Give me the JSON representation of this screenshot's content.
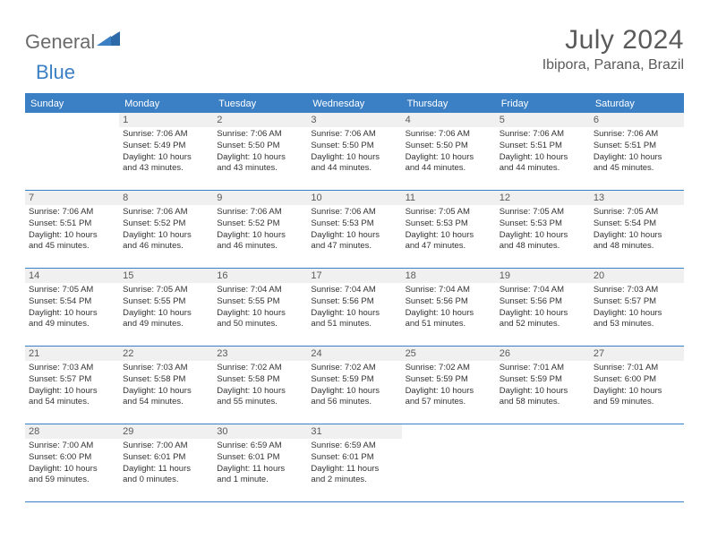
{
  "logo": {
    "part1": "General",
    "part2": "Blue"
  },
  "title": "July 2024",
  "location": "Ibipora, Parana, Brazil",
  "header_color": "#3b7fc4",
  "daynum_bg": "#f0f0f0",
  "text_color": "#333333",
  "weekdays": [
    "Sunday",
    "Monday",
    "Tuesday",
    "Wednesday",
    "Thursday",
    "Friday",
    "Saturday"
  ],
  "weeks": [
    [
      {
        "n": "",
        "sr": "",
        "ss": "",
        "d1": "",
        "d2": ""
      },
      {
        "n": "1",
        "sr": "Sunrise: 7:06 AM",
        "ss": "Sunset: 5:49 PM",
        "d1": "Daylight: 10 hours",
        "d2": "and 43 minutes."
      },
      {
        "n": "2",
        "sr": "Sunrise: 7:06 AM",
        "ss": "Sunset: 5:50 PM",
        "d1": "Daylight: 10 hours",
        "d2": "and 43 minutes."
      },
      {
        "n": "3",
        "sr": "Sunrise: 7:06 AM",
        "ss": "Sunset: 5:50 PM",
        "d1": "Daylight: 10 hours",
        "d2": "and 44 minutes."
      },
      {
        "n": "4",
        "sr": "Sunrise: 7:06 AM",
        "ss": "Sunset: 5:50 PM",
        "d1": "Daylight: 10 hours",
        "d2": "and 44 minutes."
      },
      {
        "n": "5",
        "sr": "Sunrise: 7:06 AM",
        "ss": "Sunset: 5:51 PM",
        "d1": "Daylight: 10 hours",
        "d2": "and 44 minutes."
      },
      {
        "n": "6",
        "sr": "Sunrise: 7:06 AM",
        "ss": "Sunset: 5:51 PM",
        "d1": "Daylight: 10 hours",
        "d2": "and 45 minutes."
      }
    ],
    [
      {
        "n": "7",
        "sr": "Sunrise: 7:06 AM",
        "ss": "Sunset: 5:51 PM",
        "d1": "Daylight: 10 hours",
        "d2": "and 45 minutes."
      },
      {
        "n": "8",
        "sr": "Sunrise: 7:06 AM",
        "ss": "Sunset: 5:52 PM",
        "d1": "Daylight: 10 hours",
        "d2": "and 46 minutes."
      },
      {
        "n": "9",
        "sr": "Sunrise: 7:06 AM",
        "ss": "Sunset: 5:52 PM",
        "d1": "Daylight: 10 hours",
        "d2": "and 46 minutes."
      },
      {
        "n": "10",
        "sr": "Sunrise: 7:06 AM",
        "ss": "Sunset: 5:53 PM",
        "d1": "Daylight: 10 hours",
        "d2": "and 47 minutes."
      },
      {
        "n": "11",
        "sr": "Sunrise: 7:05 AM",
        "ss": "Sunset: 5:53 PM",
        "d1": "Daylight: 10 hours",
        "d2": "and 47 minutes."
      },
      {
        "n": "12",
        "sr": "Sunrise: 7:05 AM",
        "ss": "Sunset: 5:53 PM",
        "d1": "Daylight: 10 hours",
        "d2": "and 48 minutes."
      },
      {
        "n": "13",
        "sr": "Sunrise: 7:05 AM",
        "ss": "Sunset: 5:54 PM",
        "d1": "Daylight: 10 hours",
        "d2": "and 48 minutes."
      }
    ],
    [
      {
        "n": "14",
        "sr": "Sunrise: 7:05 AM",
        "ss": "Sunset: 5:54 PM",
        "d1": "Daylight: 10 hours",
        "d2": "and 49 minutes."
      },
      {
        "n": "15",
        "sr": "Sunrise: 7:05 AM",
        "ss": "Sunset: 5:55 PM",
        "d1": "Daylight: 10 hours",
        "d2": "and 49 minutes."
      },
      {
        "n": "16",
        "sr": "Sunrise: 7:04 AM",
        "ss": "Sunset: 5:55 PM",
        "d1": "Daylight: 10 hours",
        "d2": "and 50 minutes."
      },
      {
        "n": "17",
        "sr": "Sunrise: 7:04 AM",
        "ss": "Sunset: 5:56 PM",
        "d1": "Daylight: 10 hours",
        "d2": "and 51 minutes."
      },
      {
        "n": "18",
        "sr": "Sunrise: 7:04 AM",
        "ss": "Sunset: 5:56 PM",
        "d1": "Daylight: 10 hours",
        "d2": "and 51 minutes."
      },
      {
        "n": "19",
        "sr": "Sunrise: 7:04 AM",
        "ss": "Sunset: 5:56 PM",
        "d1": "Daylight: 10 hours",
        "d2": "and 52 minutes."
      },
      {
        "n": "20",
        "sr": "Sunrise: 7:03 AM",
        "ss": "Sunset: 5:57 PM",
        "d1": "Daylight: 10 hours",
        "d2": "and 53 minutes."
      }
    ],
    [
      {
        "n": "21",
        "sr": "Sunrise: 7:03 AM",
        "ss": "Sunset: 5:57 PM",
        "d1": "Daylight: 10 hours",
        "d2": "and 54 minutes."
      },
      {
        "n": "22",
        "sr": "Sunrise: 7:03 AM",
        "ss": "Sunset: 5:58 PM",
        "d1": "Daylight: 10 hours",
        "d2": "and 54 minutes."
      },
      {
        "n": "23",
        "sr": "Sunrise: 7:02 AM",
        "ss": "Sunset: 5:58 PM",
        "d1": "Daylight: 10 hours",
        "d2": "and 55 minutes."
      },
      {
        "n": "24",
        "sr": "Sunrise: 7:02 AM",
        "ss": "Sunset: 5:59 PM",
        "d1": "Daylight: 10 hours",
        "d2": "and 56 minutes."
      },
      {
        "n": "25",
        "sr": "Sunrise: 7:02 AM",
        "ss": "Sunset: 5:59 PM",
        "d1": "Daylight: 10 hours",
        "d2": "and 57 minutes."
      },
      {
        "n": "26",
        "sr": "Sunrise: 7:01 AM",
        "ss": "Sunset: 5:59 PM",
        "d1": "Daylight: 10 hours",
        "d2": "and 58 minutes."
      },
      {
        "n": "27",
        "sr": "Sunrise: 7:01 AM",
        "ss": "Sunset: 6:00 PM",
        "d1": "Daylight: 10 hours",
        "d2": "and 59 minutes."
      }
    ],
    [
      {
        "n": "28",
        "sr": "Sunrise: 7:00 AM",
        "ss": "Sunset: 6:00 PM",
        "d1": "Daylight: 10 hours",
        "d2": "and 59 minutes."
      },
      {
        "n": "29",
        "sr": "Sunrise: 7:00 AM",
        "ss": "Sunset: 6:01 PM",
        "d1": "Daylight: 11 hours",
        "d2": "and 0 minutes."
      },
      {
        "n": "30",
        "sr": "Sunrise: 6:59 AM",
        "ss": "Sunset: 6:01 PM",
        "d1": "Daylight: 11 hours",
        "d2": "and 1 minute."
      },
      {
        "n": "31",
        "sr": "Sunrise: 6:59 AM",
        "ss": "Sunset: 6:01 PM",
        "d1": "Daylight: 11 hours",
        "d2": "and 2 minutes."
      },
      {
        "n": "",
        "sr": "",
        "ss": "",
        "d1": "",
        "d2": ""
      },
      {
        "n": "",
        "sr": "",
        "ss": "",
        "d1": "",
        "d2": ""
      },
      {
        "n": "",
        "sr": "",
        "ss": "",
        "d1": "",
        "d2": ""
      }
    ]
  ]
}
